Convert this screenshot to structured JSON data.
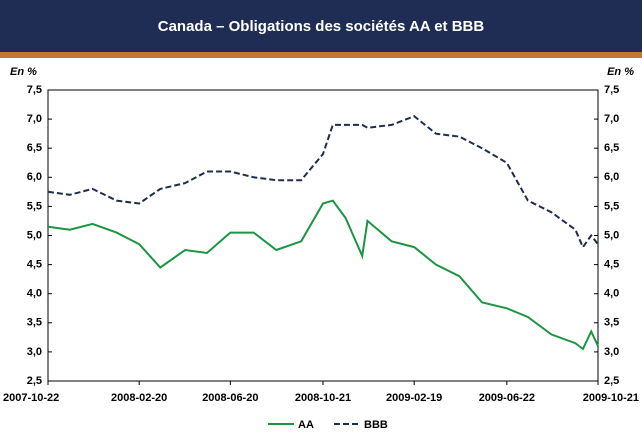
{
  "chart_data": {
    "type": "line",
    "title": "Canada – Obligations des sociétés AA et BBB",
    "y_label": "En %",
    "x": [
      "2007-10-22",
      "2007-11-20",
      "2007-12-20",
      "2008-01-21",
      "2008-02-20",
      "2008-03-19",
      "2008-04-21",
      "2008-05-20",
      "2008-06-20",
      "2008-07-21",
      "2008-08-20",
      "2008-09-22",
      "2008-10-21",
      "2008-11-03",
      "2008-11-20",
      "2008-12-12",
      "2008-12-19",
      "2009-01-20",
      "2009-02-19",
      "2009-03-20",
      "2009-04-20",
      "2009-05-20",
      "2009-06-22",
      "2009-07-20",
      "2009-08-20",
      "2009-09-21",
      "2009-10-01",
      "2009-10-12",
      "2009-10-21"
    ],
    "series": [
      {
        "name": "AA",
        "color": "#1a9641",
        "dash": false,
        "values": [
          5.15,
          5.1,
          5.2,
          5.05,
          4.85,
          4.45,
          4.75,
          4.7,
          5.05,
          5.05,
          4.75,
          4.9,
          5.55,
          5.6,
          5.3,
          4.65,
          5.25,
          4.9,
          4.8,
          4.5,
          4.3,
          3.85,
          3.75,
          3.6,
          3.3,
          3.15,
          3.05,
          3.35,
          3.1
        ]
      },
      {
        "name": "BBB",
        "color": "#1f2d4f",
        "dash": true,
        "values": [
          5.75,
          5.7,
          5.8,
          5.6,
          5.55,
          5.8,
          5.9,
          6.1,
          6.1,
          6.0,
          5.95,
          5.95,
          6.4,
          6.9,
          6.9,
          6.9,
          6.85,
          6.9,
          7.05,
          6.75,
          6.7,
          6.5,
          6.25,
          5.6,
          5.4,
          5.1,
          4.8,
          5.0,
          4.85
        ]
      }
    ],
    "xlim": [
      "2007-10-22",
      "2009-10-21"
    ],
    "xticks": [
      "2007-10-22",
      "2008-02-20",
      "2008-06-20",
      "2008-10-21",
      "2009-02-19",
      "2009-06-22",
      "2009-10-21"
    ],
    "ylim": [
      2.5,
      7.5
    ],
    "yticks": [
      {
        "value": 2.5,
        "label": "2,5"
      },
      {
        "value": 3,
        "label": "3,0"
      },
      {
        "value": 3.5,
        "label": "3,5"
      },
      {
        "value": 4,
        "label": "4,0"
      },
      {
        "value": 4.5,
        "label": "4,5"
      },
      {
        "value": 5,
        "label": "5,0"
      },
      {
        "value": 5.5,
        "label": "5,5"
      },
      {
        "value": 6,
        "label": "6,0"
      },
      {
        "value": 6.5,
        "label": "6,5"
      },
      {
        "value": 7,
        "label": "7,0"
      },
      {
        "value": 7.5,
        "label": "7,5"
      }
    ],
    "legend": "bottom"
  }
}
